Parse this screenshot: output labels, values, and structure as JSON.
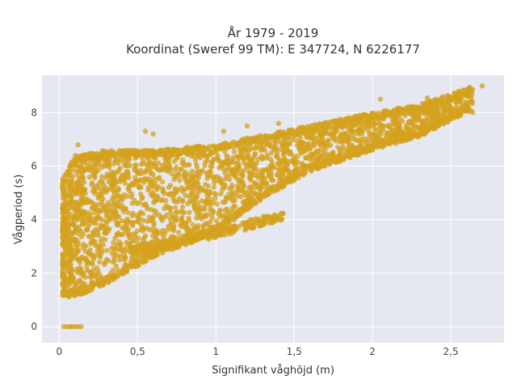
{
  "chart_data": {
    "type": "scatter",
    "title_line1": "År 1979 - 2019",
    "title_line2": "Koordinat (Sweref 99 TM): E 347724, N 6226177",
    "xlabel": "Signifikant våghöjd (m)",
    "ylabel": "Vågperiod (s)",
    "xlim": [
      -0.11,
      2.84
    ],
    "ylim": [
      -0.6,
      9.4
    ],
    "xticks": [
      0,
      0.5,
      1,
      1.5,
      2,
      2.5
    ],
    "xtick_labels": [
      "0",
      "0,5",
      "1",
      "1,5",
      "2",
      "2,5"
    ],
    "yticks": [
      0,
      2,
      4,
      6,
      8
    ],
    "ytick_labels": [
      "0",
      "2",
      "4",
      "6",
      "8"
    ],
    "grid": true,
    "marker_color": "#D4A21D",
    "plot_background": "#E5E8F0",
    "envelope": {
      "note": "upper and lower bounds of the dense point cloud, read from the axes",
      "upper": [
        [
          0.02,
          5.5
        ],
        [
          0.1,
          6.4
        ],
        [
          0.3,
          6.6
        ],
        [
          0.6,
          6.6
        ],
        [
          1.0,
          6.8
        ],
        [
          1.5,
          7.4
        ],
        [
          2.0,
          8.0
        ],
        [
          2.3,
          8.3
        ],
        [
          2.6,
          8.9
        ]
      ],
      "lower": [
        [
          0.02,
          1.1
        ],
        [
          0.1,
          1.1
        ],
        [
          0.3,
          1.6
        ],
        [
          0.6,
          2.6
        ],
        [
          1.0,
          3.5
        ],
        [
          1.3,
          4.8
        ],
        [
          1.6,
          5.8
        ],
        [
          2.0,
          6.6
        ],
        [
          2.3,
          7.1
        ],
        [
          2.6,
          8.0
        ]
      ]
    },
    "lower_branch": [
      [
        0.5,
        2.9
      ],
      [
        1.0,
        3.5
      ],
      [
        1.2,
        3.8
      ],
      [
        1.4,
        4.1
      ]
    ],
    "zero_period_points": [
      [
        0.03,
        0
      ],
      [
        0.05,
        0
      ],
      [
        0.07,
        0
      ],
      [
        0.08,
        0
      ],
      [
        0.1,
        0
      ],
      [
        0.12,
        0
      ],
      [
        0.14,
        0
      ]
    ],
    "outliers": [
      [
        0.12,
        6.8
      ],
      [
        0.55,
        7.3
      ],
      [
        0.6,
        7.2
      ],
      [
        1.05,
        7.3
      ],
      [
        1.2,
        7.5
      ],
      [
        1.4,
        7.6
      ],
      [
        2.05,
        8.5
      ],
      [
        2.35,
        8.55
      ],
      [
        2.45,
        8.6
      ],
      [
        2.55,
        8.8
      ],
      [
        2.62,
        8.95
      ],
      [
        2.7,
        9.0
      ],
      [
        2.55,
        8.4
      ],
      [
        2.6,
        8.2
      ],
      [
        2.4,
        8.0
      ],
      [
        2.25,
        7.6
      ],
      [
        2.3,
        7.4
      ],
      [
        2.4,
        7.7
      ],
      [
        0.05,
        1.7
      ]
    ]
  }
}
